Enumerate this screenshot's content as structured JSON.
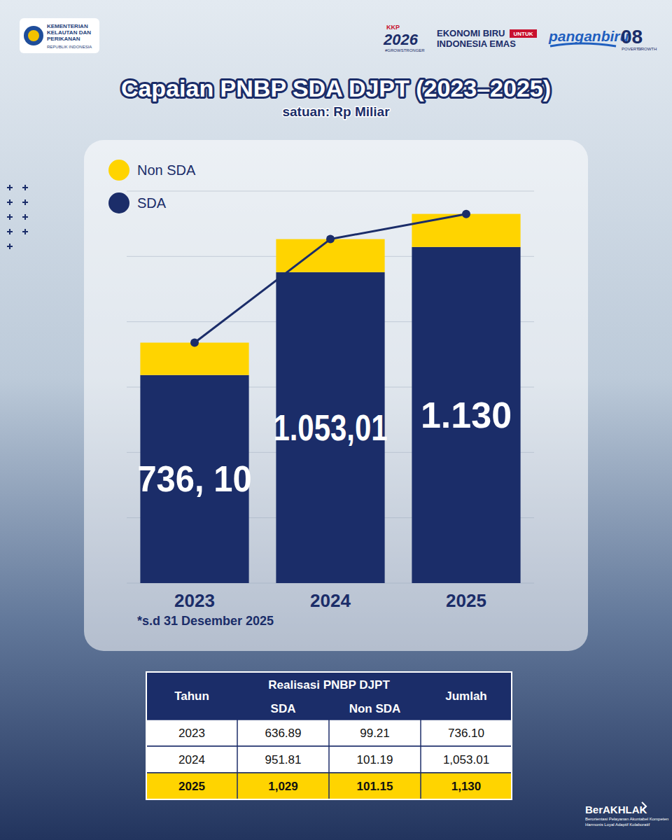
{
  "header": {
    "ministry": [
      "KEMENTERIAN",
      "KELAUTAN DAN",
      "PERIKANAN"
    ],
    "country": "REPUBLIK INDONESIA",
    "kkp_small": "KKP",
    "kkp_year": "2026",
    "kkp_tag": "#GROWSTRONGER",
    "ekonomi_1": "EKONOMI BIRU",
    "ekonomi_untuk": "UNTUK",
    "ekonomi_2": "INDONESIA EMAS",
    "pangan": "panganbiru",
    "asta": "08",
    "asta_1": "POVERTY",
    "asta_2": "GROWTH"
  },
  "chart_data": {
    "type": "bar",
    "title": "Capaian PNBP SDA DJPT (2023–2025)",
    "subtitle": "satuan: Rp Miliar",
    "categories": [
      "2023",
      "2024",
      "2025"
    ],
    "series": [
      {
        "name": "SDA",
        "type": "bar",
        "color": "#1b2d69",
        "values": [
          636.89,
          951.81,
          1029
        ]
      },
      {
        "name": "Non SDA",
        "type": "bar",
        "color": "#ffd400",
        "values": [
          99.21,
          101.19,
          101.15
        ]
      },
      {
        "type": "line",
        "color": "#1b2d69",
        "marker": "circle",
        "data_labels": true,
        "values": [
          736.1,
          1053.01,
          1130
        ],
        "value_labels": [
          "736, 10",
          "1.053,01",
          "1.130"
        ]
      }
    ],
    "stacked": true,
    "ylim": [
      0,
      1200
    ],
    "yticks": [
      0,
      200,
      400,
      600,
      800,
      1000,
      1200
    ],
    "grid": true,
    "tick_labels": "x",
    "legend": "top-left",
    "annotations": [
      "*s.d 31 Desember 2025"
    ]
  },
  "table": {
    "headers": {
      "year": "Tahun",
      "group": "Realisasi PNBP DJPT",
      "sda": "SDA",
      "non_sda": "Non SDA",
      "total": "Jumlah"
    },
    "rows": [
      [
        "2023",
        "636.89",
        "99.21",
        "736.10"
      ],
      [
        "2024",
        "951.81",
        "101.19",
        "1,053.01"
      ],
      [
        "2025",
        "1,029",
        "101.15",
        "1,130"
      ]
    ]
  },
  "footer": {
    "brand": "BerAKHLAK",
    "tagline": [
      "Berorientasi Pelayanan Akuntabel Kompeten",
      "Harmonis Loyal Adaptif Kolaboratif"
    ]
  }
}
